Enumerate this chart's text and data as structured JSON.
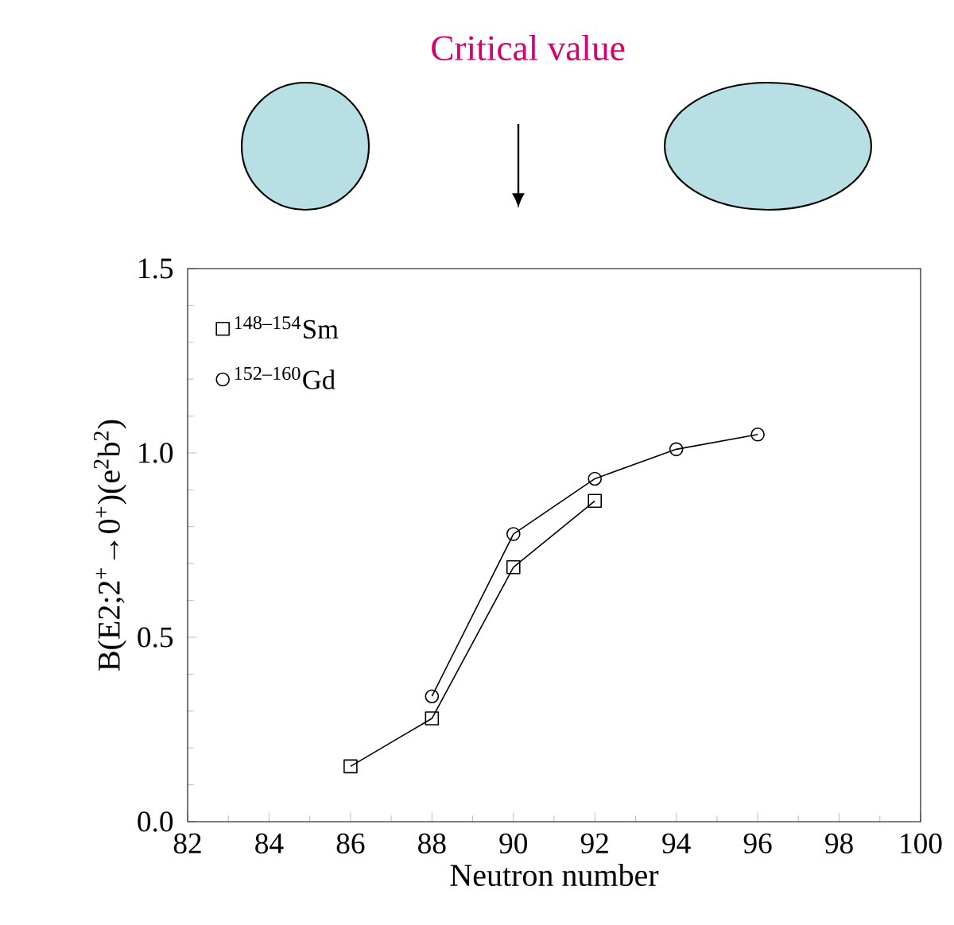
{
  "chart_data": {
    "type": "line",
    "xlabel": "Neutron number",
    "ylabel": "B(E2;2$^{+}$→0$^{+}$)(e$^{2}$b$^{2}$)",
    "annotations": [
      "Critical value"
    ],
    "series": [
      {
        "name": "$^{148–154}$Sm",
        "color": "#000000",
        "marker": "square",
        "x": [
          86,
          88,
          90,
          92
        ],
        "values": [
          0.15,
          0.28,
          0.69,
          0.87
        ]
      },
      {
        "name": "$^{152–160}$Gd",
        "color": "#000000",
        "marker": "circle",
        "x": [
          88,
          90,
          92,
          94,
          96
        ],
        "values": [
          0.34,
          0.78,
          0.93,
          1.01,
          1.05
        ]
      }
    ],
    "xlim": [
      82,
      100
    ],
    "xticks": [
      82,
      84,
      86,
      88,
      90,
      92,
      94,
      96,
      98,
      100
    ],
    "ylim": [
      0,
      1.5
    ],
    "yticks": [
      {
        "value": 0,
        "label": "0.0"
      },
      {
        "value": 0.5,
        "label": "0.5"
      },
      {
        "value": 1,
        "label": "1.0"
      },
      {
        "value": 1.5,
        "label": "1.5"
      }
    ],
    "legend": "top left",
    "line_style": "solid"
  }
}
